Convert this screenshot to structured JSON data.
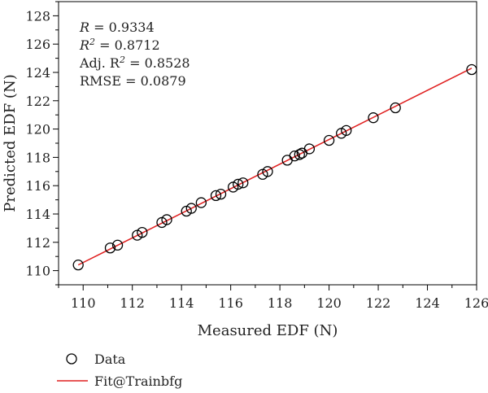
{
  "chart_data": {
    "type": "scatter",
    "xlabel": "Measured EDF (N)",
    "ylabel": "Predicted EDF (N)",
    "xlim": [
      109,
      126
    ],
    "ylim": [
      109,
      129
    ],
    "xticks": [
      110,
      112,
      114,
      116,
      118,
      120,
      122,
      124,
      126
    ],
    "yticks": [
      110,
      112,
      114,
      116,
      118,
      120,
      122,
      124,
      126,
      128
    ],
    "grid": false,
    "legend_position": "bottom",
    "colors": {
      "data_marker": "#000000",
      "fit_line": "#e02020"
    },
    "stats": [
      {
        "label": "R",
        "value": "= 0.9334"
      },
      {
        "label": "R",
        "sup": "2",
        "value": "= 0.8712"
      },
      {
        "label": "Adj. R",
        "sup": "2",
        "value": "= 0.8528"
      },
      {
        "label": "RMSE",
        "value": "= 0.0879"
      }
    ],
    "series": [
      {
        "name": "Data",
        "kind": "scatter",
        "points": [
          [
            109.8,
            110.4
          ],
          [
            111.1,
            111.6
          ],
          [
            111.4,
            111.8
          ],
          [
            112.2,
            112.5
          ],
          [
            112.4,
            112.7
          ],
          [
            113.2,
            113.4
          ],
          [
            113.4,
            113.6
          ],
          [
            114.2,
            114.2
          ],
          [
            114.4,
            114.4
          ],
          [
            114.8,
            114.8
          ],
          [
            115.4,
            115.3
          ],
          [
            115.6,
            115.4
          ],
          [
            116.1,
            115.9
          ],
          [
            116.3,
            116.1
          ],
          [
            116.5,
            116.2
          ],
          [
            117.3,
            116.8
          ],
          [
            117.5,
            117.0
          ],
          [
            118.3,
            117.8
          ],
          [
            118.6,
            118.1
          ],
          [
            118.8,
            118.2
          ],
          [
            118.9,
            118.3
          ],
          [
            119.2,
            118.6
          ],
          [
            120.0,
            119.2
          ],
          [
            120.5,
            119.7
          ],
          [
            120.7,
            119.9
          ],
          [
            121.8,
            120.8
          ],
          [
            122.7,
            121.5
          ],
          [
            125.8,
            124.2
          ]
        ]
      },
      {
        "name": "Fit@Trainbfg",
        "kind": "line",
        "points": [
          [
            109.8,
            110.4
          ],
          [
            125.8,
            124.3
          ]
        ]
      }
    ]
  }
}
